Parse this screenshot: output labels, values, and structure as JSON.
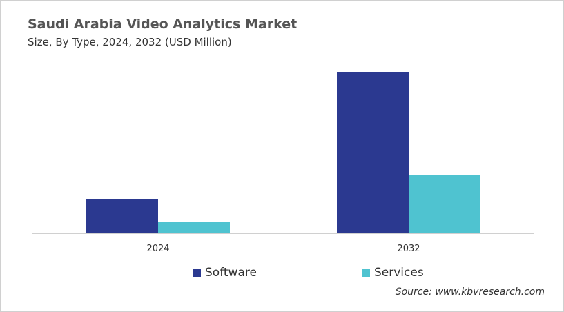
{
  "chart_data": {
    "type": "bar",
    "title": "Saudi Arabia Video Analytics Market",
    "subtitle": "Size, By Type, 2024, 2032 (USD Million)",
    "categories": [
      "2024",
      "2032"
    ],
    "series": [
      {
        "name": "Software",
        "values": [
          49,
          234
        ],
        "color": "#2b3990"
      },
      {
        "name": "Services",
        "values": [
          16,
          85
        ],
        "color": "#4fc3d0"
      }
    ],
    "ylim": [
      0,
      240
    ],
    "grid": false,
    "legend": "bottom",
    "note": "No y-axis values shown; values are relative estimates"
  },
  "source": "Source: www.kbvresearch.com"
}
